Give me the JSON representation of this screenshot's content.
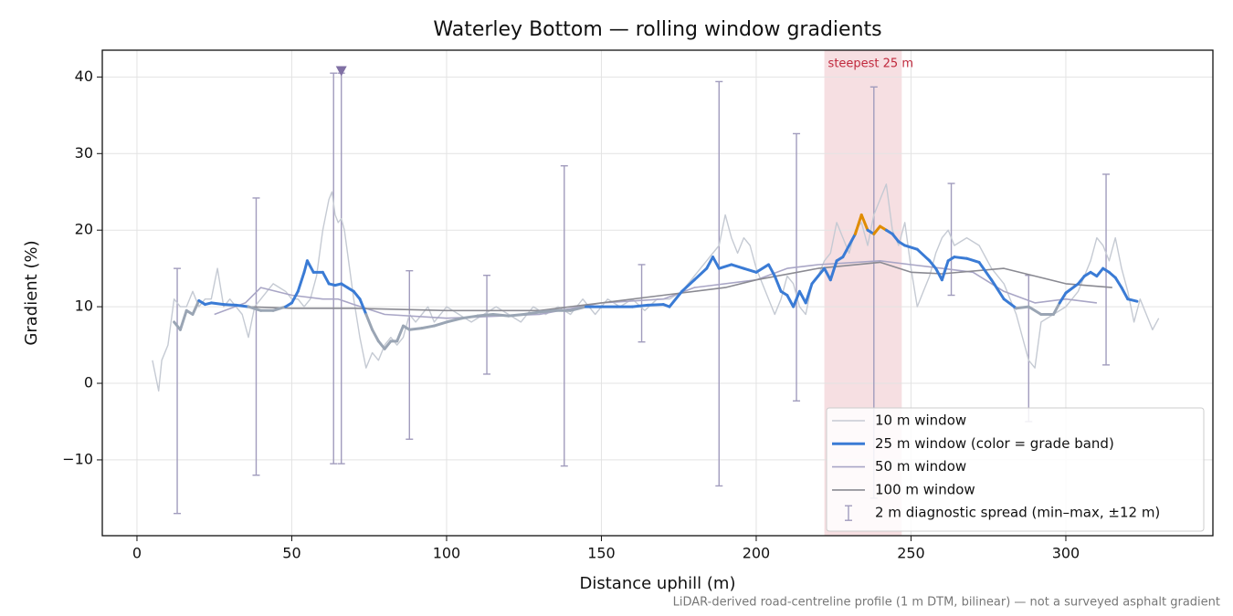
{
  "chart_data": {
    "type": "line",
    "title": "Waterley Bottom — rolling window gradients",
    "xlabel": "Distance uphill (m)",
    "ylabel": "Gradient (%)",
    "footnote": "LiDAR-derived road-centreline profile (1 m DTM, bilinear) — not a surveyed asphalt gradient",
    "xlim": [
      -11.2,
      347.5
    ],
    "ylim": [
      -19.9,
      43.5
    ],
    "xticks": [
      0,
      50,
      100,
      150,
      200,
      250,
      300
    ],
    "yticks": [
      {
        "value": -10,
        "label": "−10"
      },
      0,
      10,
      20,
      30,
      40
    ],
    "grid": true,
    "legend": "lower right",
    "highlight": {
      "label": "steepest 25 m",
      "start": 222,
      "end": 247,
      "color": "#e6a3ad",
      "label_color": "#c0283c"
    },
    "series": [
      {
        "name": "10 m window",
        "color": "#c5cad3",
        "width": 1.4,
        "x": [
          5,
          7,
          8,
          10,
          12,
          14,
          16,
          18,
          20,
          22,
          24,
          26,
          28,
          30,
          32,
          34,
          36,
          38,
          40,
          42,
          44,
          46,
          48,
          50,
          52,
          54,
          56,
          58,
          60,
          62,
          63,
          64,
          65,
          66,
          67,
          68,
          70,
          72,
          74,
          76,
          78,
          80,
          82,
          84,
          86,
          88,
          90,
          92,
          94,
          96,
          100,
          104,
          108,
          112,
          116,
          120,
          124,
          128,
          132,
          136,
          140,
          144,
          148,
          152,
          156,
          160,
          164,
          168,
          172,
          176,
          180,
          184,
          188,
          190,
          192,
          194,
          196,
          198,
          200,
          204,
          206,
          208,
          210,
          212,
          214,
          216,
          218,
          220,
          222,
          224,
          226,
          228,
          230,
          232,
          234,
          236,
          238,
          240,
          242,
          244,
          246,
          248,
          250,
          252,
          254,
          256,
          258,
          260,
          262,
          264,
          268,
          272,
          276,
          280,
          284,
          286,
          288,
          290,
          292,
          296,
          300,
          304,
          306,
          308,
          310,
          312,
          314,
          316,
          318,
          320,
          322,
          324,
          326,
          328,
          330
        ],
        "values": [
          3,
          -1,
          3,
          5,
          11,
          10,
          10,
          12,
          10,
          11,
          11,
          15,
          10,
          11,
          10,
          9,
          6,
          10,
          11,
          12,
          13,
          12.5,
          12,
          11,
          11,
          10,
          11,
          14,
          20,
          24,
          25,
          22,
          21,
          21.5,
          20,
          17,
          11,
          6,
          2,
          4,
          3,
          5,
          6,
          5,
          6,
          9,
          8,
          9,
          10,
          8,
          10,
          9,
          8,
          9,
          10,
          9,
          8,
          10,
          9,
          10,
          9,
          11,
          9,
          11,
          10,
          11,
          9.5,
          11,
          11,
          12,
          14,
          16,
          18,
          22,
          19,
          17,
          19,
          18,
          15,
          11,
          9,
          11,
          14,
          13,
          10,
          9,
          13,
          14,
          16,
          17,
          21,
          19,
          17,
          20,
          21,
          18,
          22,
          24,
          26,
          20,
          18,
          21,
          15,
          10,
          12,
          14,
          17,
          19,
          20,
          18,
          19,
          18,
          15,
          13,
          9,
          6,
          3,
          2,
          8,
          9,
          10,
          12,
          14,
          16,
          19,
          18,
          16,
          19,
          15,
          12,
          8,
          11,
          9,
          7,
          8.5
        ]
      },
      {
        "name": "25 m window (color = grade band)",
        "color": "#3a7bd5",
        "width": 3,
        "grade_bands": [
          {
            "below": 10,
            "color": "#9aa5b4"
          },
          {
            "below": 20,
            "color": "#3a7bd5"
          },
          {
            "color": "#e08c00"
          }
        ],
        "x": [
          12,
          14,
          16,
          18,
          20,
          22,
          24,
          28,
          32,
          36,
          40,
          44,
          48,
          50,
          52,
          54,
          55,
          57,
          60,
          62,
          64,
          66,
          68,
          70,
          72,
          74,
          76,
          78,
          80,
          82,
          84,
          86,
          88,
          92,
          96,
          100,
          105,
          110,
          115,
          120,
          125,
          130,
          135,
          140,
          145,
          150,
          155,
          160,
          165,
          170,
          172,
          176,
          180,
          184,
          186,
          188,
          192,
          196,
          200,
          204,
          206,
          208,
          210,
          212,
          214,
          216,
          218,
          220,
          222,
          224,
          226,
          228,
          230,
          232,
          234,
          236,
          238,
          240,
          242,
          244,
          246,
          248,
          252,
          256,
          258,
          260,
          262,
          264,
          268,
          272,
          276,
          280,
          284,
          288,
          292,
          296,
          298,
          300,
          304,
          306,
          308,
          310,
          312,
          314,
          316,
          318,
          320,
          323
        ],
        "values": [
          8,
          7,
          9.5,
          9,
          10.8,
          10.3,
          10.5,
          10.3,
          10.2,
          10,
          9.5,
          9.5,
          10,
          10.5,
          12,
          14.5,
          16,
          14.5,
          14.5,
          13,
          12.8,
          13,
          12.5,
          12,
          11,
          9,
          7,
          5.5,
          4.5,
          5.5,
          5.5,
          7.5,
          7,
          7.2,
          7.5,
          8,
          8.5,
          8.8,
          9,
          8.8,
          9,
          9.3,
          9.5,
          9.5,
          10,
          10,
          10,
          10,
          10.2,
          10.3,
          10,
          12,
          13.5,
          15,
          16.5,
          15,
          15.5,
          15,
          14.5,
          15.5,
          14,
          12,
          11.5,
          10,
          12,
          10.5,
          13,
          14,
          15,
          13.5,
          16,
          16.5,
          18,
          19.5,
          22,
          20,
          19.5,
          20.5,
          20,
          19.5,
          18.5,
          18,
          17.5,
          16,
          15,
          13.5,
          16,
          16.5,
          16.3,
          15.8,
          13.5,
          11,
          9.8,
          10,
          9,
          9,
          10.5,
          11.8,
          13,
          14,
          14.5,
          14,
          15,
          14.5,
          13.8,
          12.5,
          11,
          10.7
        ]
      },
      {
        "name": "50 m window",
        "color": "#a9a6c6",
        "width": 1.6,
        "x": [
          25,
          35,
          40,
          50,
          60,
          65,
          70,
          80,
          100,
          130,
          150,
          170,
          180,
          200,
          210,
          220,
          240,
          250,
          260,
          270,
          280,
          290,
          300,
          310
        ],
        "values": [
          9,
          10.5,
          12.5,
          11.5,
          11,
          11,
          10.3,
          9,
          8.5,
          9,
          10.5,
          11,
          12.5,
          13.5,
          15,
          15.5,
          16,
          15.5,
          15,
          14.5,
          12,
          10.5,
          11,
          10.5
        ]
      },
      {
        "name": "100 m window",
        "color": "#8a8a92",
        "width": 1.6,
        "x": [
          35,
          50,
          70,
          100,
          130,
          150,
          170,
          190,
          200,
          220,
          240,
          250,
          260,
          280,
          290,
          300,
          315
        ],
        "values": [
          10,
          9.8,
          9.8,
          9.5,
          9.5,
          10.5,
          11.5,
          12.5,
          13.5,
          15,
          15.8,
          14.5,
          14.3,
          15,
          14,
          13,
          12.5
        ]
      }
    ],
    "errorbars": {
      "name": "2 m diagnostic spread (min–max, ±12 m)",
      "color": "#a19cbd",
      "x": [
        13,
        38.5,
        63.5,
        66,
        88,
        113,
        138,
        163,
        188,
        213,
        238,
        263,
        288,
        313
      ],
      "low": [
        -17,
        -12,
        -10.5,
        -10.5,
        -7.3,
        1.2,
        -10.8,
        5.4,
        -13.4,
        -2.3,
        -15,
        11.5,
        -5,
        2.4
      ],
      "high": [
        15,
        24.2,
        40.5,
        40.5,
        14.7,
        14.1,
        28.4,
        15.5,
        39.4,
        32.6,
        38.7,
        26.1,
        14.1,
        27.3
      ]
    },
    "off_scale_marker": {
      "x": 66,
      "y": 40.7,
      "color": "#8070a4"
    }
  }
}
